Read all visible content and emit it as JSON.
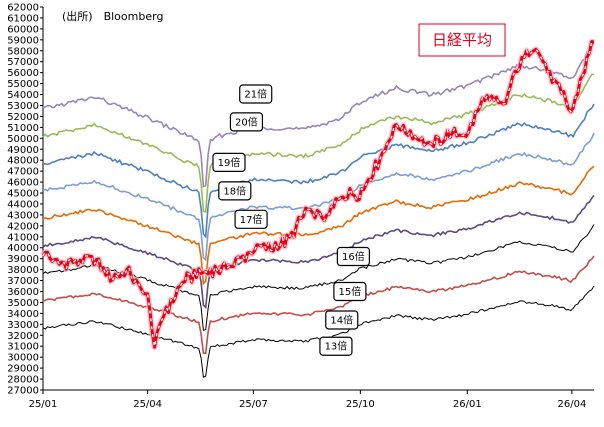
{
  "source_label": "(出所)　Bloomberg",
  "chart_data": {
    "type": "line",
    "title": "日経平均",
    "xlabel": "",
    "ylabel": "",
    "ylim": [
      27000,
      62000
    ],
    "y_tick_step": 1000,
    "x_range": [
      "2025-01-01",
      "2026-04-20"
    ],
    "x_ticks": [
      {
        "date": "2025-01-01",
        "label": "25/01"
      },
      {
        "date": "2025-04-01",
        "label": "25/04"
      },
      {
        "date": "2025-07-01",
        "label": "25/07"
      },
      {
        "date": "2025-10-01",
        "label": "25/10"
      },
      {
        "date": "2026-01-01",
        "label": "26/01"
      },
      {
        "date": "2026-04-01",
        "label": "26/04"
      }
    ],
    "grid": false,
    "legend": "none",
    "nikkei": {
      "name": "日経平均",
      "color": "#e6001a",
      "points": [
        [
          "2025-01-01",
          39800
        ],
        [
          "2025-01-15",
          38400
        ],
        [
          "2025-02-01",
          38800
        ],
        [
          "2025-02-15",
          39000
        ],
        [
          "2025-03-01",
          37200
        ],
        [
          "2025-03-15",
          37800
        ],
        [
          "2025-04-01",
          35600
        ],
        [
          "2025-04-07",
          31200
        ],
        [
          "2025-04-15",
          34000
        ],
        [
          "2025-05-01",
          36800
        ],
        [
          "2025-05-15",
          37800
        ],
        [
          "2025-06-01",
          38000
        ],
        [
          "2025-06-15",
          38600
        ],
        [
          "2025-07-01",
          39900
        ],
        [
          "2025-07-15",
          40000
        ],
        [
          "2025-08-01",
          40800
        ],
        [
          "2025-08-15",
          43300
        ],
        [
          "2025-09-01",
          42600
        ],
        [
          "2025-09-15",
          44800
        ],
        [
          "2025-10-01",
          45000
        ],
        [
          "2025-10-15",
          47500
        ],
        [
          "2025-11-01",
          51300
        ],
        [
          "2025-11-15",
          50300
        ],
        [
          "2025-12-01",
          49300
        ],
        [
          "2025-12-15",
          50400
        ],
        [
          "2026-01-01",
          50300
        ],
        [
          "2026-01-15",
          53800
        ],
        [
          "2026-02-01",
          53000
        ],
        [
          "2026-02-15",
          56800
        ],
        [
          "2026-02-28",
          58500
        ],
        [
          "2026-03-15",
          55500
        ],
        [
          "2026-04-01",
          52500
        ],
        [
          "2026-04-10",
          56000
        ],
        [
          "2026-04-20",
          59000
        ]
      ]
    },
    "pe_series": [
      {
        "label": "21倍",
        "color": "#9987b5"
      },
      {
        "label": "20倍",
        "color": "#9bbb59"
      },
      {
        "label": "19倍",
        "color": "#4f81bd"
      },
      {
        "label": "18倍",
        "color": "#7f9fcf"
      },
      {
        "label": "17倍",
        "color": "#e36c09"
      },
      {
        "label": "16倍",
        "color": "#604a7b"
      },
      {
        "label": "15倍",
        "color": "#000000"
      },
      {
        "label": "14倍",
        "color": "#c0504d"
      },
      {
        "label": "13倍",
        "color": "#000000"
      }
    ]
  }
}
